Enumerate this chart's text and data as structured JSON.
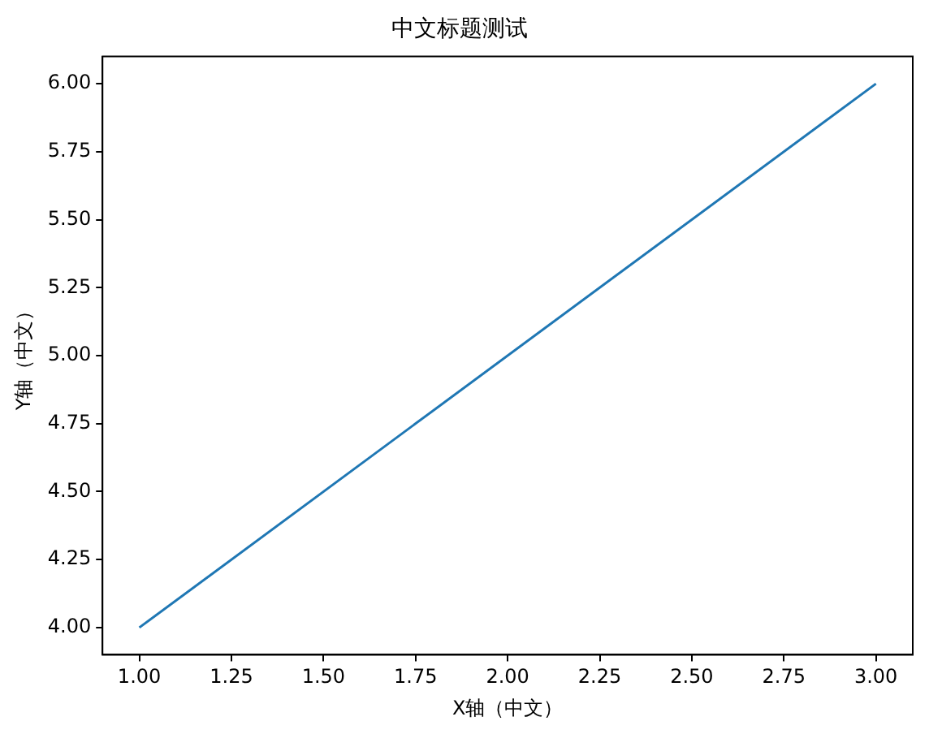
{
  "chart_data": {
    "type": "line",
    "title": "中文标题测试",
    "xlabel": "X轴（中文）",
    "ylabel": "Y轴（中文）",
    "x": [
      1,
      3
    ],
    "series": [
      {
        "color": "#1f77b4",
        "values": [
          4,
          6
        ]
      }
    ],
    "xlim": [
      0.9,
      3.1
    ],
    "ylim": [
      3.9,
      6.1
    ],
    "xticks": [
      {
        "value": 1,
        "label": "1.00"
      },
      {
        "value": 1.25,
        "label": "1.25"
      },
      {
        "value": 1.5,
        "label": "1.50"
      },
      {
        "value": 1.75,
        "label": "1.75"
      },
      {
        "value": 2,
        "label": "2.00"
      },
      {
        "value": 2.25,
        "label": "2.25"
      },
      {
        "value": 2.5,
        "label": "2.50"
      },
      {
        "value": 2.75,
        "label": "2.75"
      },
      {
        "value": 3,
        "label": "3.00"
      }
    ],
    "yticks": [
      {
        "value": 4,
        "label": "4.00"
      },
      {
        "value": 4.25,
        "label": "4.25"
      },
      {
        "value": 4.5,
        "label": "4.50"
      },
      {
        "value": 4.75,
        "label": "4.75"
      },
      {
        "value": 5,
        "label": "5.00"
      },
      {
        "value": 5.25,
        "label": "5.25"
      },
      {
        "value": 5.5,
        "label": "5.50"
      },
      {
        "value": 5.75,
        "label": "5.75"
      },
      {
        "value": 6,
        "label": "6.00"
      }
    ],
    "grid": false,
    "legend": false,
    "marker": "none",
    "line_style": "solid"
  }
}
